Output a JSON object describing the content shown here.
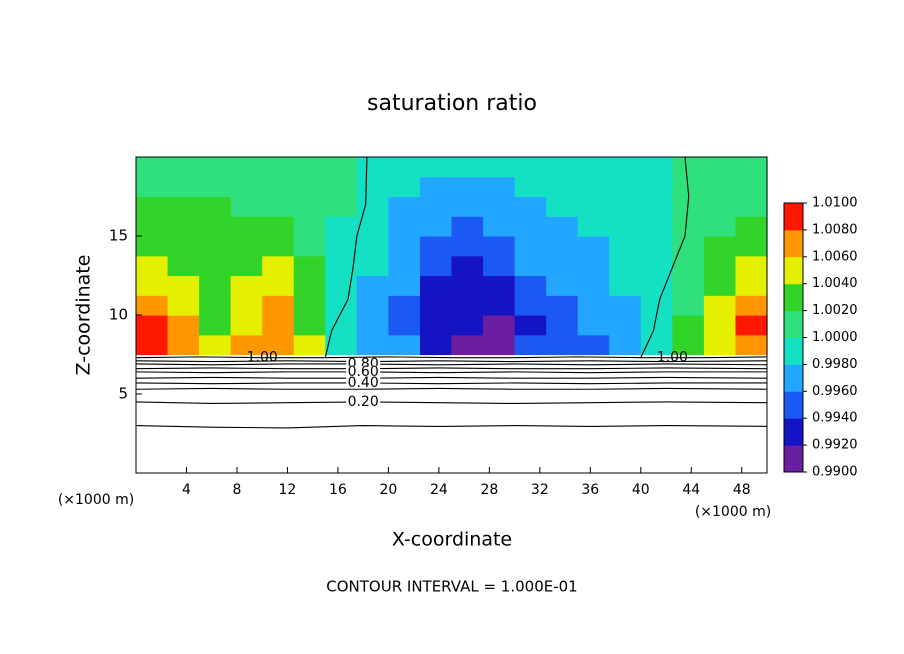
{
  "chart_data": {
    "type": "contour",
    "title": "saturation ratio",
    "xlabel": "X-coordinate",
    "ylabel": "Z-coordinate",
    "x_unit": "(×1000 m)",
    "footer": "CONTOUR INTERVAL = 1.000E-01",
    "xlim": [
      0,
      50
    ],
    "ylim": [
      0,
      20
    ],
    "xticks": [
      4,
      8,
      12,
      16,
      20,
      24,
      28,
      32,
      36,
      40,
      44,
      48
    ],
    "yticks": [
      5,
      10,
      15
    ],
    "x": [
      1.25,
      3.75,
      6.25,
      8.75,
      11.25,
      13.75,
      16.25,
      18.75,
      21.25,
      23.75,
      26.25,
      28.75,
      31.25,
      33.75,
      36.25,
      38.75,
      41.25,
      43.75,
      46.25,
      48.75
    ],
    "y": [
      8.125,
      9.375,
      10.625,
      11.875,
      13.125,
      14.375,
      15.625,
      16.875,
      18.125,
      19.375
    ],
    "z": [
      [
        1.008,
        1.007,
        1.004,
        1.006,
        1.007,
        1.004,
        0.999,
        0.997,
        0.996,
        0.993,
        0.991,
        0.991,
        0.994,
        0.994,
        0.995,
        0.997,
        0.999,
        1.002,
        1.005,
        1.007
      ],
      [
        1.008,
        1.006,
        1.003,
        1.005,
        1.007,
        1.003,
        0.999,
        0.997,
        0.995,
        0.992,
        0.992,
        0.991,
        0.993,
        0.995,
        0.996,
        0.997,
        0.999,
        1.002,
        1.005,
        1.008
      ],
      [
        1.007,
        1.005,
        1.003,
        1.004,
        1.006,
        1.003,
        0.999,
        0.997,
        0.995,
        0.993,
        0.992,
        0.993,
        0.994,
        0.995,
        0.996,
        0.997,
        0.999,
        1.001,
        1.004,
        1.007
      ],
      [
        1.005,
        1.004,
        1.002,
        1.004,
        1.005,
        1.002,
        0.999,
        0.997,
        0.996,
        0.993,
        0.993,
        0.993,
        0.995,
        0.996,
        0.997,
        0.998,
        0.999,
        1.001,
        1.003,
        1.005
      ],
      [
        1.004,
        1.003,
        1.002,
        1.003,
        1.004,
        1.002,
        0.999,
        0.998,
        0.996,
        0.994,
        0.993,
        0.994,
        0.996,
        0.997,
        0.997,
        0.998,
        0.999,
        1.001,
        1.002,
        1.004
      ],
      [
        1.003,
        1.003,
        1.002,
        1.003,
        1.003,
        1.001,
        0.999,
        0.998,
        0.996,
        0.995,
        0.994,
        0.995,
        0.996,
        0.997,
        0.997,
        0.998,
        0.999,
        1.001,
        1.002,
        1.003
      ],
      [
        1.002,
        1.002,
        1.002,
        1.002,
        1.002,
        1.001,
        0.999,
        0.998,
        0.997,
        0.996,
        0.995,
        0.996,
        0.997,
        0.997,
        0.998,
        0.998,
        0.999,
        1.001,
        1.001,
        1.002
      ],
      [
        1.002,
        1.002,
        1.002,
        1.001,
        1.001,
        1.001,
        1.0,
        0.998,
        0.997,
        0.997,
        0.996,
        0.997,
        0.997,
        0.998,
        0.998,
        0.998,
        0.999,
        1.0,
        1.001,
        1.001
      ],
      [
        1.001,
        1.001,
        1.001,
        1.001,
        1.001,
        1.001,
        1.0,
        0.998,
        0.998,
        0.997,
        0.997,
        0.997,
        0.998,
        0.998,
        0.998,
        0.999,
        0.999,
        1.0,
        1.001,
        1.001
      ],
      [
        1.001,
        1.001,
        1.001,
        1.001,
        1.001,
        1.001,
        1.0,
        0.998,
        0.998,
        0.998,
        0.998,
        0.998,
        0.998,
        0.998,
        0.998,
        0.999,
        0.999,
        1.0,
        1.001,
        1.001
      ]
    ],
    "colorbar": {
      "bounds": [
        {
          "value": 0.99,
          "label": "0.9900"
        },
        {
          "value": 0.992,
          "label": "0.9920"
        },
        {
          "value": 0.994,
          "label": "0.9940"
        },
        {
          "value": 0.996,
          "label": "0.9960"
        },
        {
          "value": 0.998,
          "label": "0.9980"
        },
        {
          "value": 1.0,
          "label": "1.0000"
        },
        {
          "value": 1.002,
          "label": "1.0020"
        },
        {
          "value": 1.004,
          "label": "1.0040"
        },
        {
          "value": 1.006,
          "label": "1.0060"
        },
        {
          "value": 1.008,
          "label": "1.0080"
        },
        {
          "value": 1.01,
          "label": "1.0100"
        }
      ],
      "colors": [
        "#6b1fa0",
        "#1414c4",
        "#1c58f2",
        "#22a6ff",
        "#14e0c4",
        "#30e07c",
        "#33d42a",
        "#e4f000",
        "#ff9800",
        "#ff1800",
        "#f28a8a"
      ]
    },
    "contours": [
      {
        "label": "1.00",
        "x": [
          0,
          5,
          10,
          15,
          20,
          25,
          30,
          35,
          40,
          45,
          50
        ],
        "y": [
          7.3,
          7.35,
          7.3,
          7.3,
          7.35,
          7.3,
          7.3,
          7.35,
          7.3,
          7.3,
          7.35
        ]
      },
      {
        "x": [
          0,
          6,
          12,
          18,
          24,
          30,
          36,
          42,
          50
        ],
        "y": [
          7.1,
          7.05,
          7.1,
          7.05,
          7.1,
          7.05,
          7.1,
          7.05,
          7.1
        ]
      },
      {
        "label": "0.80",
        "x": [
          0,
          6,
          12,
          18,
          24,
          30,
          36,
          42,
          50
        ],
        "y": [
          6.9,
          6.85,
          6.9,
          6.9,
          6.85,
          6.9,
          6.85,
          6.9,
          6.85
        ]
      },
      {
        "x": [
          0,
          6,
          12,
          18,
          24,
          30,
          36,
          42,
          50
        ],
        "y": [
          6.6,
          6.65,
          6.6,
          6.6,
          6.65,
          6.6,
          6.6,
          6.65,
          6.6
        ]
      },
      {
        "label": "0.60",
        "x": [
          0,
          6,
          12,
          18,
          24,
          30,
          36,
          42,
          50
        ],
        "y": [
          6.4,
          6.35,
          6.4,
          6.4,
          6.35,
          6.4,
          6.35,
          6.4,
          6.4
        ]
      },
      {
        "x": [
          0,
          6,
          12,
          18,
          24,
          30,
          36,
          42,
          50
        ],
        "y": [
          6.0,
          6.05,
          6.0,
          6.0,
          6.05,
          6.0,
          6.0,
          6.05,
          6.0
        ]
      },
      {
        "label": "0.40",
        "x": [
          0,
          6,
          12,
          18,
          24,
          30,
          36,
          42,
          50
        ],
        "y": [
          5.7,
          5.65,
          5.7,
          5.7,
          5.65,
          5.7,
          5.65,
          5.7,
          5.7
        ]
      },
      {
        "x": [
          0,
          6,
          12,
          18,
          24,
          30,
          36,
          42,
          50
        ],
        "y": [
          5.3,
          5.35,
          5.3,
          5.3,
          5.35,
          5.3,
          5.3,
          5.35,
          5.3
        ]
      },
      {
        "label": "0.20",
        "x": [
          0,
          6,
          12,
          18,
          24,
          30,
          36,
          42,
          50
        ],
        "y": [
          4.5,
          4.4,
          4.45,
          4.5,
          4.45,
          4.4,
          4.45,
          4.5,
          4.45
        ]
      },
      {
        "x": [
          0,
          6,
          12,
          18,
          24,
          30,
          36,
          42,
          50
        ],
        "y": [
          3.0,
          2.9,
          2.85,
          3.0,
          2.95,
          3.0,
          2.95,
          3.0,
          2.95
        ]
      },
      {
        "x": [
          15,
          15.5,
          16.8,
          17.2,
          17.5,
          18.2,
          18.3
        ],
        "y": [
          7.3,
          9,
          11,
          13,
          15,
          17,
          20
        ]
      },
      {
        "x": [
          40,
          41,
          41.5,
          42.5,
          43.5,
          43.8,
          43.5
        ],
        "y": [
          7.3,
          9,
          11,
          13,
          15,
          17.5,
          20
        ]
      }
    ]
  }
}
